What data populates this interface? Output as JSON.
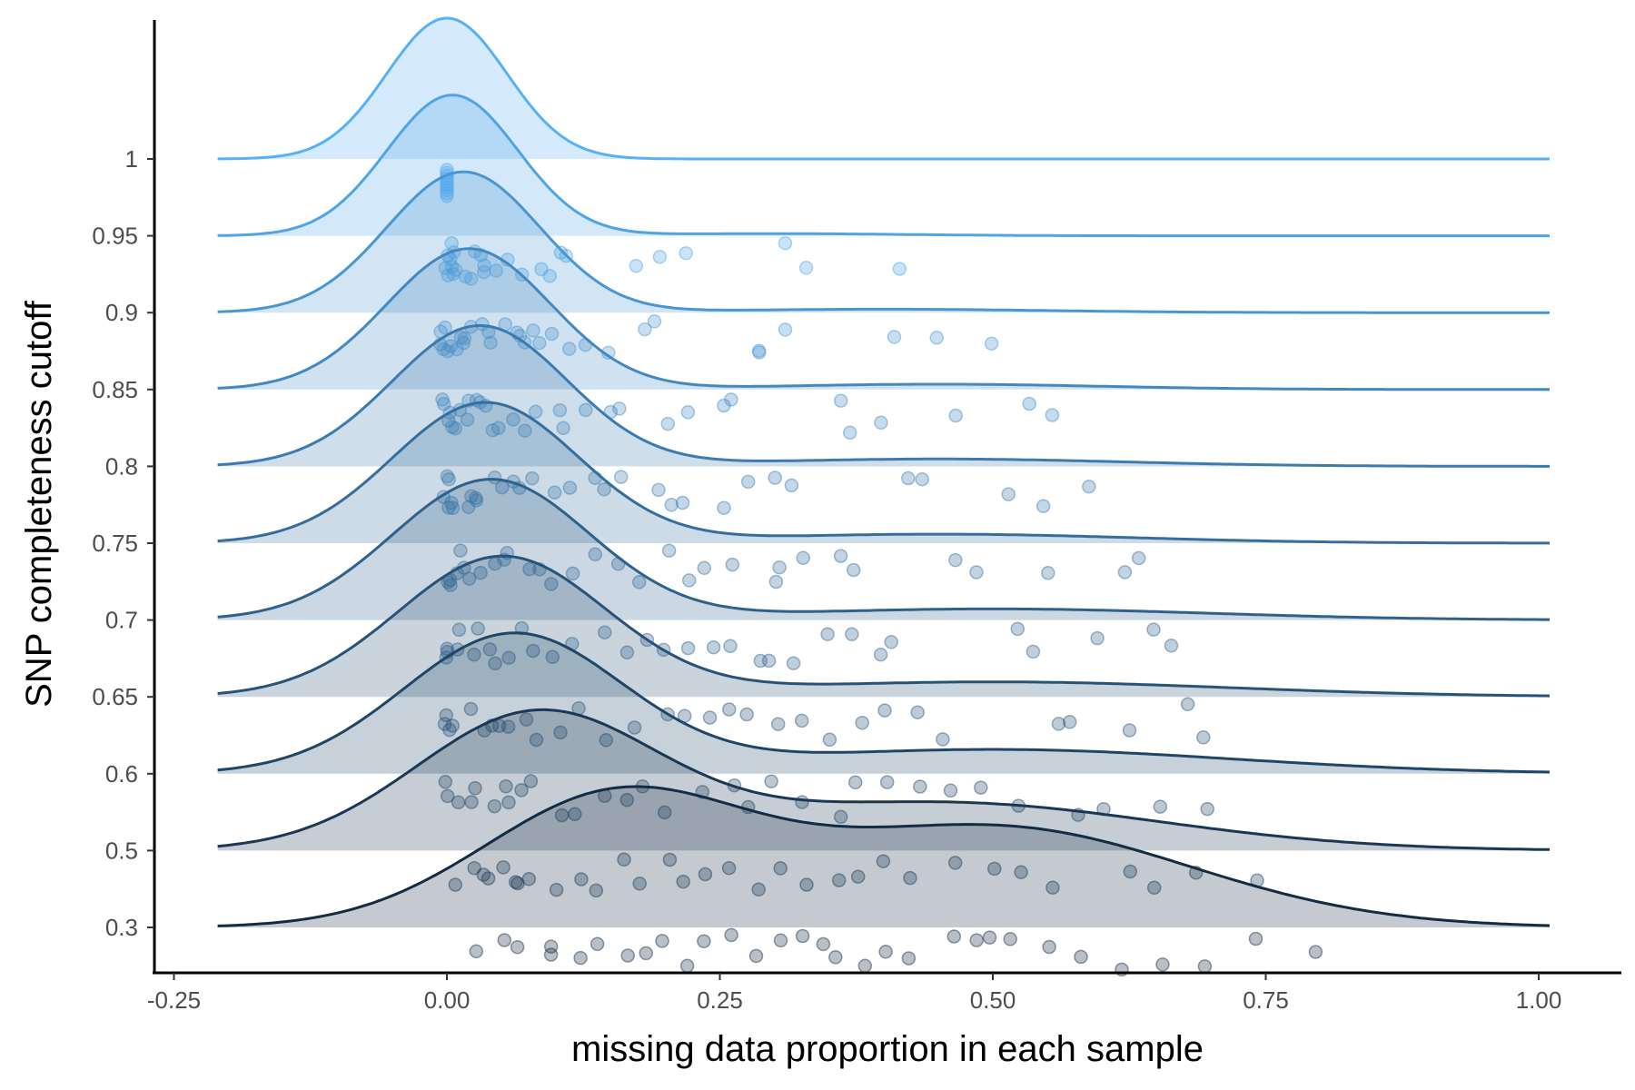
{
  "chart_data": {
    "type": "ridgeline",
    "xlabel": "missing data proportion in each sample",
    "ylabel": "SNP completeness cutoff",
    "xlim": [
      -0.25,
      1.02
    ],
    "x_ticks": [
      "-0.25",
      "0.00",
      "0.25",
      "0.50",
      "0.75",
      "1.00"
    ],
    "x_tick_values": [
      -0.25,
      0,
      0.25,
      0.5,
      0.75,
      1.0
    ],
    "categories": [
      "0.3",
      "0.5",
      "0.6",
      "0.65",
      "0.7",
      "0.75",
      "0.8",
      "0.85",
      "0.9",
      "0.95",
      "1"
    ],
    "color_low": "#132B43",
    "color_high": "#56B1F7",
    "grid": false,
    "legend": "none",
    "series": [
      {
        "cutoff": "1",
        "density": [
          {
            "m": 0.0,
            "s": 0.055,
            "w": 1
          }
        ],
        "points": [
          0,
          0,
          0,
          0,
          0,
          0,
          0,
          0,
          0,
          0
        ]
      },
      {
        "cutoff": "0.95",
        "density": [
          {
            "m": 0.005,
            "s": 0.06,
            "w": 0.97
          },
          {
            "m": 0.3,
            "s": 0.12,
            "w": 0.03
          }
        ],
        "points": [
          0,
          0,
          0,
          0,
          0.005,
          0.005,
          0.01,
          0.01,
          0.01,
          0.015,
          0.02,
          0.025,
          0.03,
          0.035,
          0.04,
          0.05,
          0.06,
          0.07,
          0.085,
          0.09,
          0.105,
          0.11,
          0.17,
          0.2,
          0.22,
          0.31,
          0.33,
          0.41
        ]
      },
      {
        "cutoff": "0.9",
        "density": [
          {
            "m": 0.015,
            "s": 0.07,
            "w": 0.95
          },
          {
            "m": 0.4,
            "s": 0.15,
            "w": 0.05
          }
        ],
        "points": [
          0,
          0,
          0,
          0,
          0,
          0.005,
          0.01,
          0.01,
          0.015,
          0.02,
          0.025,
          0.03,
          0.035,
          0.04,
          0.05,
          0.06,
          0.065,
          0.07,
          0.08,
          0.09,
          0.1,
          0.11,
          0.13,
          0.15,
          0.18,
          0.19,
          0.28,
          0.29,
          0.31,
          0.41,
          0.45,
          0.5
        ]
      },
      {
        "cutoff": "0.85",
        "density": [
          {
            "m": 0.02,
            "s": 0.075,
            "w": 0.93
          },
          {
            "m": 0.45,
            "s": 0.15,
            "w": 0.07
          }
        ],
        "points": [
          0,
          0,
          0,
          0,
          0.005,
          0.01,
          0.01,
          0.015,
          0.02,
          0.025,
          0.03,
          0.04,
          0.045,
          0.05,
          0.06,
          0.07,
          0.085,
          0.1,
          0.11,
          0.13,
          0.15,
          0.16,
          0.2,
          0.22,
          0.25,
          0.26,
          0.36,
          0.37,
          0.4,
          0.47,
          0.53,
          0.55
        ]
      },
      {
        "cutoff": "0.8",
        "density": [
          {
            "m": 0.03,
            "s": 0.08,
            "w": 0.9
          },
          {
            "m": 0.45,
            "s": 0.17,
            "w": 0.1
          }
        ],
        "points": [
          0,
          0,
          0,
          0,
          0.005,
          0.01,
          0.015,
          0.02,
          0.025,
          0.03,
          0.04,
          0.05,
          0.06,
          0.07,
          0.08,
          0.1,
          0.11,
          0.13,
          0.15,
          0.16,
          0.19,
          0.2,
          0.22,
          0.25,
          0.27,
          0.3,
          0.32,
          0.42,
          0.44,
          0.51,
          0.55,
          0.59
        ]
      },
      {
        "cutoff": "0.75",
        "density": [
          {
            "m": 0.035,
            "s": 0.085,
            "w": 0.88
          },
          {
            "m": 0.45,
            "s": 0.18,
            "w": 0.12
          }
        ],
        "points": [
          0,
          0,
          0,
          0.005,
          0.01,
          0.015,
          0.02,
          0.03,
          0.04,
          0.05,
          0.06,
          0.07,
          0.08,
          0.1,
          0.12,
          0.14,
          0.16,
          0.18,
          0.2,
          0.22,
          0.24,
          0.26,
          0.3,
          0.31,
          0.33,
          0.36,
          0.37,
          0.46,
          0.48,
          0.55,
          0.62,
          0.63
        ]
      },
      {
        "cutoff": "0.7",
        "density": [
          {
            "m": 0.04,
            "s": 0.09,
            "w": 0.85
          },
          {
            "m": 0.5,
            "s": 0.2,
            "w": 0.15
          }
        ],
        "points": [
          0,
          0,
          0.005,
          0.01,
          0.015,
          0.02,
          0.03,
          0.04,
          0.05,
          0.06,
          0.07,
          0.08,
          0.1,
          0.12,
          0.14,
          0.16,
          0.18,
          0.2,
          0.22,
          0.24,
          0.26,
          0.29,
          0.3,
          0.32,
          0.35,
          0.37,
          0.4,
          0.41,
          0.52,
          0.54,
          0.59,
          0.65,
          0.66
        ]
      },
      {
        "cutoff": "0.65",
        "density": [
          {
            "m": 0.05,
            "s": 0.095,
            "w": 0.8
          },
          {
            "m": 0.5,
            "s": 0.22,
            "w": 0.2
          }
        ],
        "points": [
          0,
          0,
          0.005,
          0.01,
          0.02,
          0.03,
          0.04,
          0.05,
          0.06,
          0.07,
          0.08,
          0.1,
          0.12,
          0.14,
          0.17,
          0.2,
          0.22,
          0.24,
          0.26,
          0.28,
          0.3,
          0.32,
          0.35,
          0.38,
          0.4,
          0.43,
          0.45,
          0.56,
          0.57,
          0.62,
          0.68,
          0.69
        ]
      },
      {
        "cutoff": "0.6",
        "density": [
          {
            "m": 0.06,
            "s": 0.1,
            "w": 0.72
          },
          {
            "m": 0.5,
            "s": 0.22,
            "w": 0.28
          }
        ],
        "points": [
          0,
          0.005,
          0.01,
          0.02,
          0.03,
          0.04,
          0.05,
          0.06,
          0.07,
          0.08,
          0.1,
          0.12,
          0.14,
          0.16,
          0.18,
          0.2,
          0.23,
          0.26,
          0.28,
          0.3,
          0.33,
          0.36,
          0.38,
          0.4,
          0.43,
          0.46,
          0.49,
          0.52,
          0.58,
          0.6,
          0.65,
          0.7
        ]
      },
      {
        "cutoff": "0.5",
        "density": [
          {
            "m": 0.08,
            "s": 0.11,
            "w": 0.6
          },
          {
            "m": 0.45,
            "s": 0.2,
            "w": 0.4
          }
        ],
        "points": [
          0.01,
          0.02,
          0.03,
          0.04,
          0.05,
          0.06,
          0.07,
          0.08,
          0.1,
          0.12,
          0.14,
          0.16,
          0.18,
          0.2,
          0.22,
          0.24,
          0.26,
          0.28,
          0.3,
          0.33,
          0.36,
          0.38,
          0.4,
          0.43,
          0.46,
          0.5,
          0.52,
          0.56,
          0.63,
          0.65,
          0.69,
          0.74
        ]
      },
      {
        "cutoff": "0.3",
        "density": [
          {
            "m": 0.15,
            "s": 0.12,
            "w": 0.45
          },
          {
            "m": 0.5,
            "s": 0.18,
            "w": 0.55
          }
        ],
        "points": [
          0.03,
          0.05,
          0.07,
          0.09,
          0.1,
          0.12,
          0.14,
          0.16,
          0.18,
          0.2,
          0.22,
          0.24,
          0.26,
          0.28,
          0.3,
          0.32,
          0.34,
          0.36,
          0.38,
          0.4,
          0.42,
          0.46,
          0.48,
          0.5,
          0.52,
          0.55,
          0.58,
          0.62,
          0.65,
          0.7,
          0.74,
          0.8
        ]
      }
    ]
  }
}
